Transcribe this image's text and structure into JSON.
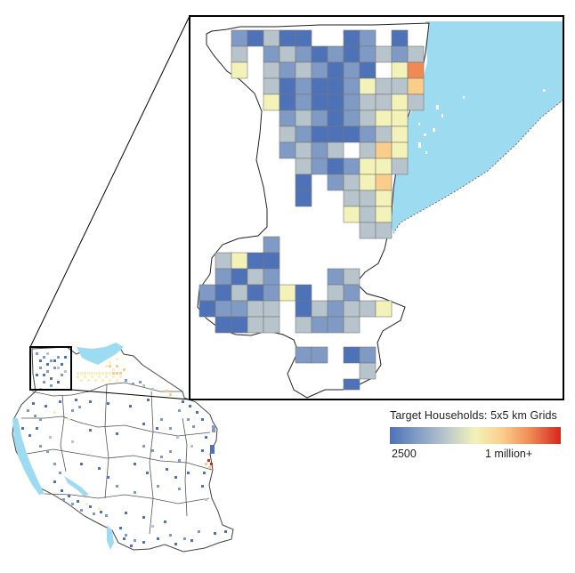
{
  "legend": {
    "title": "Target Households: 5x5 km Grids",
    "min_label": "2500",
    "max_label": "1 million+",
    "colors": [
      "#4d72b8",
      "#7f9ac4",
      "#b7c4cc",
      "#f3f2b8",
      "#fbcd8a",
      "#f08a55",
      "#d7261e"
    ]
  },
  "colors": {
    "water": "#9ddcf0",
    "boundary": "#333333",
    "frame": "#000000",
    "background": "#ffffff"
  }
}
